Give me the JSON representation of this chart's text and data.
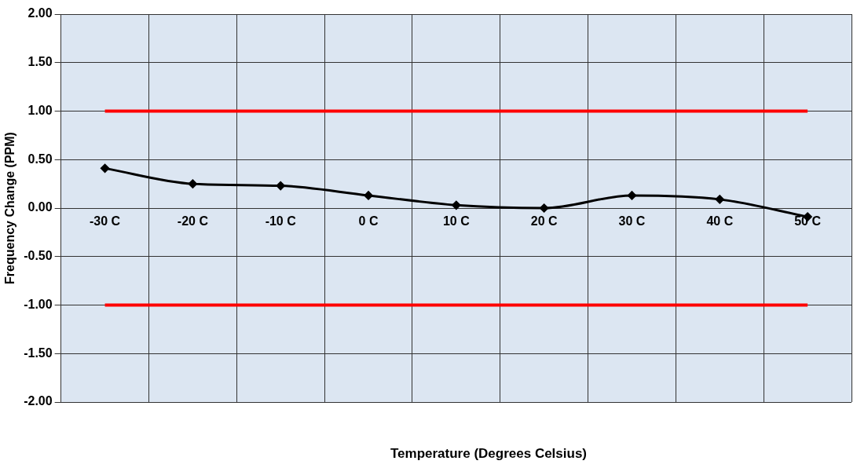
{
  "chart_data": {
    "type": "line",
    "xlabel": "Temperature (Degrees Celsius)",
    "ylabel": "Frequency Change (PPM)",
    "categories": [
      "-30 C",
      "-20 C",
      "-10 C",
      "0 C",
      "10 C",
      "20 C",
      "30 C",
      "40 C",
      "50 C"
    ],
    "series": [
      {
        "color": "#000000",
        "values": [
          0.41,
          0.25,
          0.23,
          0.13,
          0.03,
          0.0,
          0.13,
          0.09,
          -0.09
        ],
        "marker": "diamond"
      },
      {
        "color": "#ff0000",
        "values": [
          1,
          1,
          1,
          1,
          1,
          1,
          1,
          1,
          1
        ],
        "marker": "none"
      },
      {
        "color": "#ff0000",
        "values": [
          -1,
          -1,
          -1,
          -1,
          -1,
          -1,
          -1,
          -1,
          -1
        ],
        "marker": "none"
      }
    ],
    "ylim": [
      -2,
      2
    ],
    "yticks": [
      {
        "value": -2,
        "label": "-2.00"
      },
      {
        "value": -1.5,
        "label": "-1.50"
      },
      {
        "value": -1,
        "label": "-1.00"
      },
      {
        "value": -0.5,
        "label": "-0.50"
      },
      {
        "value": 0,
        "label": "0.00"
      },
      {
        "value": 0.5,
        "label": "0.50"
      },
      {
        "value": 1,
        "label": "1.00"
      },
      {
        "value": 1.5,
        "label": "1.50"
      },
      {
        "value": 2,
        "label": "2.00"
      }
    ],
    "grid": true,
    "legend": false
  }
}
